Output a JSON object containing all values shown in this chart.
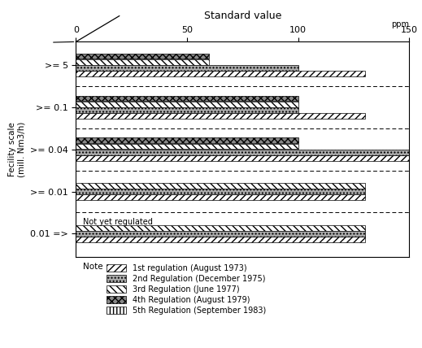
{
  "title": "Standard value",
  "ylabel": "Fecility scale\n(mill. Nm3/h)",
  "xlim": [
    0,
    150
  ],
  "xticks": [
    0,
    50,
    100,
    150
  ],
  "categories": [
    ">=5",
    ">=0.1",
    ">=0.04",
    ">=0.01",
    "0.01=>"
  ],
  "category_labels": [
    ">= 5",
    ">= 0.1",
    ">= 0.04",
    ">= 0.01",
    "0.01 =>"
  ],
  "not_yet_regulated_cat": "0.01=>",
  "regulations": [
    {
      "name": "1st regulation (August 1973)",
      "hatch": "////",
      "fc": "white"
    },
    {
      "name": "2nd Regulation (December 1975)",
      "hatch": "....",
      "fc": "#aaaaaa"
    },
    {
      "name": "3rd Regulation (June 1977)",
      "hatch": "\\\\\\\\",
      "fc": "white"
    },
    {
      "name": "4th Regulation (August 1979)",
      "hatch": "xxxx",
      "fc": "#888888"
    },
    {
      "name": "5th Regulation (September 1983)",
      "hatch": "||||",
      "fc": "white"
    }
  ],
  "bar_data": {
    ">=5": [
      130,
      100,
      60,
      60,
      0
    ],
    ">=0.1": [
      130,
      100,
      100,
      100,
      0
    ],
    ">=0.04": [
      150,
      150,
      100,
      100,
      0
    ],
    ">=0.01": [
      130,
      130,
      130,
      0,
      0
    ],
    "0.01=>": [
      130,
      130,
      130,
      0,
      0
    ]
  },
  "background_color": "#ffffff"
}
